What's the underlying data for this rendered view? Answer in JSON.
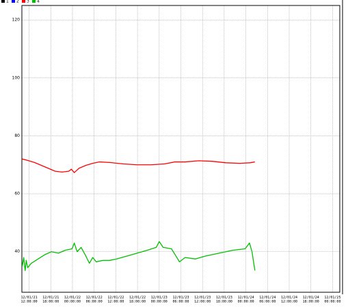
{
  "chart_data": {
    "type": "line",
    "grid": true,
    "legend": "top-left",
    "xlim": [
      -2,
      86
    ],
    "ylim": [
      26,
      125
    ],
    "yticks": [
      40,
      60,
      80,
      100,
      120
    ],
    "xticks": [
      {
        "value": 0,
        "label": "12/01/21 12:00:00"
      },
      {
        "value": 6,
        "label": "12/01/21 18:00:00"
      },
      {
        "value": 12,
        "label": "12/01/22 00:00:00"
      },
      {
        "value": 18,
        "label": "12/01/22 06:00:00"
      },
      {
        "value": 24,
        "label": "12/01/22 12:00:00"
      },
      {
        "value": 30,
        "label": "12/01/22 18:00:00"
      },
      {
        "value": 36,
        "label": "12/01/23 00:00:00"
      },
      {
        "value": 42,
        "label": "12/01/23 06:00:00"
      },
      {
        "value": 48,
        "label": "12/01/23 12:00:00"
      },
      {
        "value": 54,
        "label": "12/01/23 18:00:00"
      },
      {
        "value": 60,
        "label": "12/01/24 00:00:00"
      },
      {
        "value": 66,
        "label": "12/01/24 06:00:00"
      },
      {
        "value": 72,
        "label": "12/01/24 12:00:00"
      },
      {
        "value": 78,
        "label": "12/01/24 18:00:00"
      },
      {
        "value": 84,
        "label": "12/01/25 00:00:00"
      }
    ],
    "series": [
      {
        "name": "1",
        "color": "#000000",
        "x": [],
        "values": []
      },
      {
        "name": "2",
        "color": "#0000ff",
        "x": [],
        "values": []
      },
      {
        "name": "3",
        "color": "#ff0000",
        "x": [
          -1.9,
          -0.4,
          1.5,
          3.4,
          5.3,
          7.2,
          9.1,
          11.0,
          11.7,
          12.5,
          13.8,
          15.7,
          17.6,
          19.5,
          22.3,
          26.1,
          29.9,
          33.7,
          37.5,
          40.3,
          43.2,
          47.0,
          50.7,
          54.5,
          58.3,
          61.1,
          62.5
        ],
        "values": [
          72,
          71.5,
          70.8,
          69.8,
          68.8,
          67.8,
          67.5,
          67.8,
          68.5,
          67.3,
          68.8,
          69.8,
          70.5,
          71,
          70.8,
          70.3,
          70,
          70,
          70.3,
          71,
          71,
          71.4,
          71.2,
          70.7,
          70.5,
          70.7,
          71
        ]
      },
      {
        "name": "4",
        "color": "#00c000",
        "x": [
          -1.9,
          -1.5,
          -1.1,
          -0.8,
          -0.4,
          0.6,
          2.5,
          4.4,
          6.2,
          8.1,
          10.0,
          11.9,
          12.5,
          13.3,
          14.4,
          15.7,
          16.7,
          17.6,
          18.6,
          20.4,
          22.3,
          24.2,
          27.1,
          29.9,
          32.7,
          35.2,
          36.0,
          37.1,
          39.4,
          40.9,
          41.6,
          43.2,
          46.0,
          48.8,
          52.6,
          56.4,
          59.8,
          61.0,
          61.7,
          62.5
        ],
        "values": [
          35,
          38,
          33.5,
          37,
          34.5,
          36,
          37.5,
          39,
          40,
          39.5,
          40.5,
          41,
          43,
          40,
          41.5,
          38.5,
          36,
          38,
          36.5,
          37,
          37,
          37.5,
          38.5,
          39.5,
          40.5,
          41.5,
          43.5,
          41.5,
          41,
          38,
          36.5,
          38,
          37.5,
          38.5,
          39.5,
          40.5,
          41,
          43,
          40,
          33.5
        ]
      }
    ]
  }
}
